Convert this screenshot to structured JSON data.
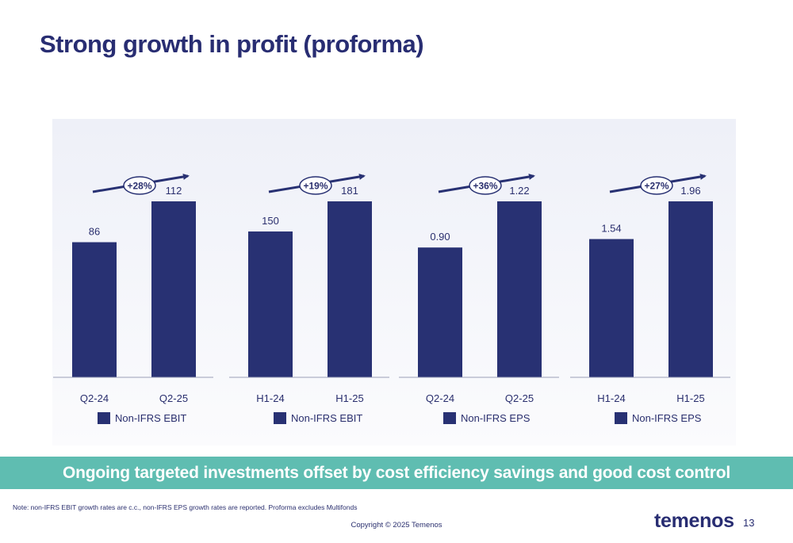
{
  "title": "Strong growth in profit (proforma)",
  "banner": "Ongoing targeted investments offset by cost efficiency savings and good cost control",
  "note": "Note: non-IFRS EBIT growth rates are c.c., non-IFRS EPS growth rates are reported. Proforma excludes Multifonds",
  "copyright": "Copyright © 2025 Temenos",
  "logo": "temenos",
  "page_number": "13",
  "colors": {
    "bar": "#283173",
    "banner": "#5fbdb1",
    "title": "#282d72",
    "text": "#2a2f6e",
    "chart_bg": "#eef0f8"
  },
  "chart_data": [
    {
      "type": "bar",
      "categories": [
        "Q2-24",
        "Q2-25"
      ],
      "values": [
        86,
        112
      ],
      "data_labels": [
        "86",
        "112"
      ],
      "growth_label": "+28%",
      "legend": "Non-IFRS EBIT",
      "ylim": [
        0,
        112
      ]
    },
    {
      "type": "bar",
      "categories": [
        "H1-24",
        "H1-25"
      ],
      "values": [
        150,
        181
      ],
      "data_labels": [
        "150",
        "181"
      ],
      "growth_label": "+19%",
      "legend": "Non-IFRS EBIT",
      "ylim": [
        0,
        181
      ]
    },
    {
      "type": "bar",
      "categories": [
        "Q2-24",
        "Q2-25"
      ],
      "values": [
        0.9,
        1.22
      ],
      "data_labels": [
        "0.90",
        "1.22"
      ],
      "growth_label": "+36%",
      "legend": "Non-IFRS EPS",
      "ylim": [
        0,
        1.22
      ]
    },
    {
      "type": "bar",
      "categories": [
        "H1-24",
        "H1-25"
      ],
      "values": [
        1.54,
        1.96
      ],
      "data_labels": [
        "1.54",
        "1.96"
      ],
      "growth_label": "+27%",
      "legend": "Non-IFRS EPS",
      "ylim": [
        0,
        1.96
      ]
    }
  ]
}
